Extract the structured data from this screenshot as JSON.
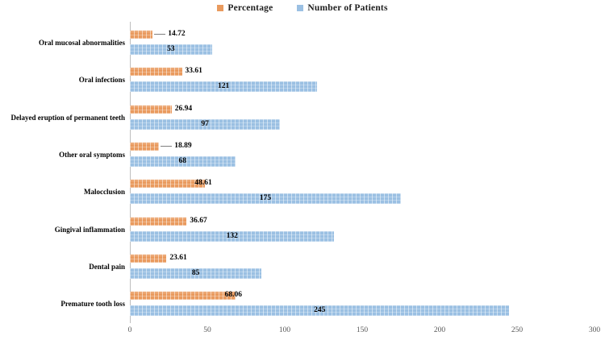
{
  "chart_data": {
    "type": "bar",
    "orientation": "horizontal",
    "title": "",
    "categories": [
      "Oral mucosal abnormalities",
      "Oral infections",
      "Delayed eruption of permanent teeth",
      "Other oral symptoms",
      "Malocclusion",
      "Gingival inflammation",
      "Dental pain",
      "Premature tooth loss"
    ],
    "series": [
      {
        "name": "Percentage",
        "color": "#e99a5e",
        "values": [
          14.72,
          33.61,
          26.94,
          18.89,
          48.61,
          36.67,
          23.61,
          68.06
        ],
        "label_position": "outside-end",
        "label_anchor": [
          "leader",
          "end",
          "end",
          "leader",
          "overlap",
          "end",
          "end",
          "overlap"
        ]
      },
      {
        "name": "Number of Patients",
        "color": "#9bc0e3",
        "values": [
          53,
          121,
          97,
          68,
          175,
          132,
          85,
          245
        ],
        "label_position": "inside-center"
      }
    ],
    "xlim": [
      0,
      300
    ],
    "x_ticks": [
      0,
      50,
      100,
      150,
      200,
      250,
      300
    ],
    "grid": false,
    "legend_position": "top-center",
    "bar_pattern": "dashed",
    "axis_color": "#bfbfbf"
  }
}
